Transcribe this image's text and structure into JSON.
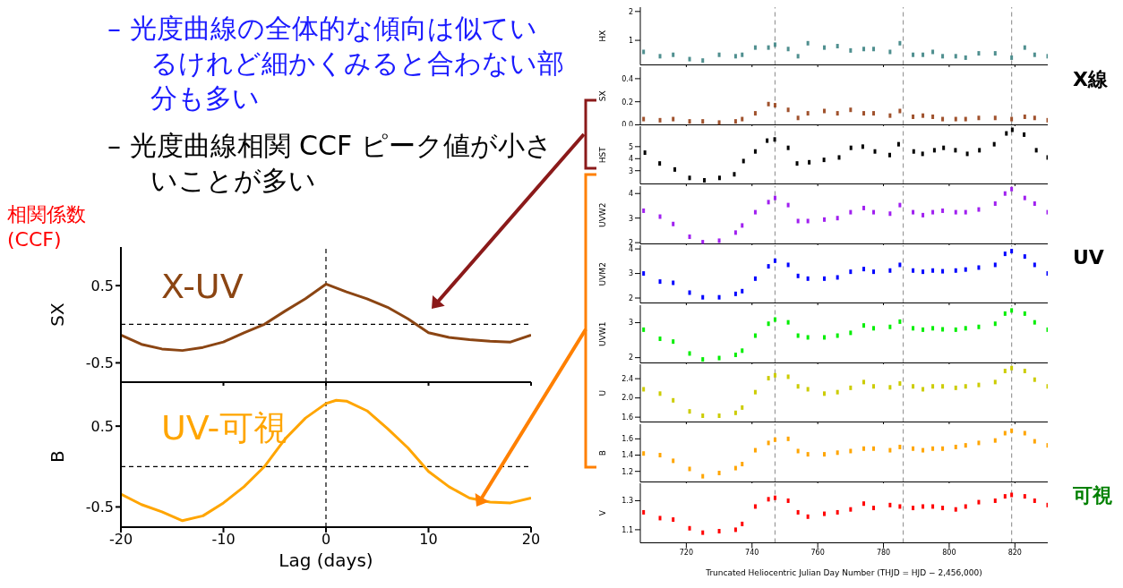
{
  "chart_data": [
    {
      "type": "other",
      "annotations": [
        "– 光度曲線の全体的な傾向は似ているけれど細かくみると合わない部分も多い",
        "– 光度曲線相関 CCF ピーク値が小さいことが多い"
      ]
    },
    {
      "type": "line",
      "ylabel": "SX",
      "annotations": [
        "相関係数 (CCF)"
      ],
      "xlim": [
        -20,
        20
      ],
      "xticks": [
        -20,
        -10,
        0,
        10,
        20
      ],
      "ylim": [
        -0.75,
        1.0
      ],
      "yticks": [
        -0.5,
        0.5
      ],
      "tick_labels": "y",
      "ref_lines": [
        {
          "axis": "x",
          "value": 0,
          "color": "#000000",
          "line_style": "dashed"
        },
        {
          "axis": "y",
          "value": 0,
          "color": "#000000",
          "line_style": "dashed"
        }
      ],
      "series": [
        {
          "name": "X-UV",
          "color": "#8b4513",
          "x": [
            -20,
            -18,
            -16,
            -14,
            -12,
            -10,
            -8,
            -6,
            -4,
            -2,
            0,
            2,
            4,
            6,
            8,
            10,
            12,
            14,
            16,
            18,
            20
          ],
          "values": [
            -0.14,
            -0.26,
            -0.32,
            -0.34,
            -0.3,
            -0.23,
            -0.11,
            0,
            0.17,
            0.33,
            0.52,
            0.42,
            0.33,
            0.22,
            0.07,
            -0.11,
            -0.17,
            -0.2,
            -0.22,
            -0.23,
            -0.14
          ]
        }
      ]
    },
    {
      "type": "line",
      "ylabel": "B",
      "xlabel": "Lag (days)",
      "xlim": [
        -20,
        20
      ],
      "xticks": [
        -20,
        -10,
        0,
        10,
        20
      ],
      "ylim": [
        -0.75,
        1.0
      ],
      "yticks": [
        -0.5,
        0.5
      ],
      "ref_lines": [
        {
          "axis": "x",
          "value": 0,
          "color": "#000000",
          "line_style": "dashed"
        },
        {
          "axis": "y",
          "value": 0,
          "color": "#000000",
          "line_style": "dashed"
        }
      ],
      "series": [
        {
          "name": "UV-可視",
          "color": "#ffa500",
          "x": [
            -20,
            -18,
            -16,
            -14,
            -12,
            -10,
            -8,
            -6,
            -4,
            -2,
            0,
            1,
            2,
            4,
            6,
            8,
            10,
            12,
            14,
            16,
            18,
            20
          ],
          "values": [
            -0.34,
            -0.47,
            -0.56,
            -0.67,
            -0.61,
            -0.45,
            -0.25,
            0,
            0.34,
            0.6,
            0.78,
            0.82,
            0.81,
            0.69,
            0.47,
            0.23,
            -0.06,
            -0.25,
            -0.39,
            -0.44,
            -0.45,
            -0.39
          ]
        }
      ]
    },
    {
      "type": "scatter",
      "ylabel": "HX",
      "marker": "square",
      "tick_labels": "y",
      "xlim": [
        706,
        830
      ],
      "xticks": [
        720,
        740,
        760,
        780,
        800,
        820
      ],
      "ylim": [
        0.15,
        2.15
      ],
      "yticks": [
        1,
        2
      ],
      "ref_lines": [
        {
          "axis": "x",
          "value": 747,
          "color": "#999999",
          "line_style": "dashed"
        },
        {
          "axis": "x",
          "value": 786,
          "color": "#999999",
          "line_style": "dashed"
        },
        {
          "axis": "x",
          "value": 819,
          "color": "#999999",
          "line_style": "dashed"
        }
      ],
      "x": [
        707,
        712,
        716,
        721,
        725,
        730,
        735,
        737,
        741,
        745,
        747,
        751,
        754,
        757,
        762,
        766,
        770,
        774,
        777,
        782,
        785,
        789,
        792,
        795,
        798,
        802,
        805,
        809,
        814,
        817,
        819,
        823,
        826,
        830
      ],
      "series": [
        {
          "color": "#4f8f8f",
          "values": [
            0.6,
            0.45,
            0.5,
            0.35,
            0.3,
            0.5,
            0.45,
            0.5,
            0.75,
            0.75,
            0.85,
            0.7,
            0.45,
            0.9,
            0.75,
            0.8,
            0.65,
            0.7,
            0.7,
            0.6,
            0.9,
            0.5,
            0.5,
            0.6,
            0.45,
            0.45,
            0.4,
            0.55,
            0.55,
            null,
            0.4,
            0.75,
            0.5,
            0.45
          ]
        }
      ]
    },
    {
      "type": "scatter",
      "ylabel": "SX",
      "marker": "square",
      "tick_labels": "y",
      "annotations": [
        "X線"
      ],
      "xlim": [
        706,
        830
      ],
      "xticks": [
        720,
        740,
        760,
        780,
        800,
        820
      ],
      "ylim": [
        0,
        0.5
      ],
      "yticks": [
        {
          "value": 0,
          "label": "0.0"
        },
        0.2,
        0.4
      ],
      "ref_lines": [
        {
          "axis": "x",
          "value": 747,
          "color": "#999999",
          "line_style": "dashed"
        },
        {
          "axis": "x",
          "value": 786,
          "color": "#999999",
          "line_style": "dashed"
        },
        {
          "axis": "x",
          "value": 819,
          "color": "#999999",
          "line_style": "dashed"
        }
      ],
      "x": [
        707,
        712,
        716,
        721,
        725,
        730,
        735,
        737,
        741,
        745,
        747,
        751,
        754,
        757,
        762,
        766,
        770,
        774,
        777,
        782,
        785,
        789,
        792,
        795,
        798,
        802,
        805,
        809,
        814,
        817,
        819,
        823,
        826,
        830
      ],
      "series": [
        {
          "color": "#a0522d",
          "values": [
            0.05,
            0.04,
            0.05,
            0.03,
            0.03,
            0.02,
            0.03,
            0.05,
            0.1,
            0.18,
            0.17,
            0.13,
            0.06,
            0.1,
            0.12,
            0.1,
            0.13,
            0.1,
            0.1,
            0.08,
            0.12,
            0.07,
            0.08,
            0.07,
            0.05,
            0.05,
            0.05,
            0.06,
            0.06,
            null,
            0.05,
            0.07,
            0.06,
            0.04
          ]
        }
      ]
    },
    {
      "type": "scatter",
      "ylabel": "HST",
      "marker": "square",
      "tick_labels": "y",
      "xlim": [
        706,
        830
      ],
      "xticks": [
        720,
        740,
        760,
        780,
        800,
        820
      ],
      "ylim": [
        1.9,
        6.7
      ],
      "yticks": [
        3,
        4,
        5
      ],
      "ref_lines": [
        {
          "axis": "x",
          "value": 747,
          "color": "#999999",
          "line_style": "dashed"
        },
        {
          "axis": "x",
          "value": 786,
          "color": "#999999",
          "line_style": "dashed"
        },
        {
          "axis": "x",
          "value": 819,
          "color": "#999999",
          "line_style": "dashed"
        }
      ],
      "x": [
        707.4,
        711.9,
        716.5,
        721,
        725.5,
        730.1,
        734.6,
        737.4,
        741,
        744.6,
        746.9,
        751,
        753.7,
        757.4,
        761.9,
        766.5,
        770.1,
        773.7,
        777.4,
        781.9,
        784.6,
        789.2,
        791.9,
        795.5,
        798.3,
        801.9,
        805.5,
        809.2,
        813.7,
        817.4,
        819.2,
        822.8,
        826.5,
        830
      ],
      "series": [
        {
          "color": "#000000",
          "values": [
            4.5,
            3.6,
            3.1,
            2.4,
            2.2,
            2.4,
            2.7,
            3.8,
            4.6,
            5.5,
            5.6,
            4.9,
            3.6,
            3.7,
            3.9,
            4.1,
            4.9,
            5.0,
            4.6,
            4.3,
            5.2,
            4.6,
            4.4,
            4.7,
            4.9,
            4.7,
            4.4,
            4.7,
            5.2,
            6.1,
            6.4,
            6.0,
            4.7,
            4.1
          ]
        }
      ]
    },
    {
      "type": "scatter",
      "ylabel": "UVW2",
      "marker": "square",
      "tick_labels": "y",
      "xlim": [
        706,
        830
      ],
      "xticks": [
        720,
        740,
        760,
        780,
        800,
        820
      ],
      "ylim": [
        1.95,
        4.3
      ],
      "yticks": [
        2,
        3,
        4
      ],
      "ref_lines": [
        {
          "axis": "x",
          "value": 747,
          "color": "#999999",
          "line_style": "dashed"
        },
        {
          "axis": "x",
          "value": 786,
          "color": "#999999",
          "line_style": "dashed"
        },
        {
          "axis": "x",
          "value": 819,
          "color": "#999999",
          "line_style": "dashed"
        }
      ],
      "x": [
        707,
        712,
        716,
        721,
        725,
        730,
        735,
        737,
        741,
        745,
        747,
        751,
        754,
        757,
        762,
        766,
        770,
        774,
        777,
        782,
        785,
        789,
        792,
        795,
        798,
        802,
        805,
        809,
        814,
        817,
        819,
        823,
        826,
        830
      ],
      "series": [
        {
          "color": "#a020f0",
          "values": [
            3.3,
            3.06,
            2.76,
            2.24,
            2.02,
            2.08,
            2.41,
            2.7,
            3.24,
            3.65,
            3.82,
            3.53,
            2.88,
            2.88,
            2.94,
            3.0,
            3.24,
            3.41,
            3.24,
            3.18,
            3.53,
            3.24,
            3.12,
            3.24,
            3.3,
            3.24,
            3.24,
            3.35,
            3.59,
            4.0,
            4.18,
            3.82,
            3.59,
            3.24
          ]
        }
      ]
    },
    {
      "type": "scatter",
      "ylabel": "UVM2",
      "marker": "square",
      "tick_labels": "y",
      "annotations": [
        "UV"
      ],
      "xlim": [
        706,
        830
      ],
      "xticks": [
        720,
        740,
        760,
        780,
        800,
        820
      ],
      "ylim": [
        1.8,
        4.15
      ],
      "yticks": [
        2,
        3,
        4
      ],
      "ref_lines": [
        {
          "axis": "x",
          "value": 747,
          "color": "#999999",
          "line_style": "dashed"
        },
        {
          "axis": "x",
          "value": 786,
          "color": "#999999",
          "line_style": "dashed"
        },
        {
          "axis": "x",
          "value": 819,
          "color": "#999999",
          "line_style": "dashed"
        }
      ],
      "x": [
        707,
        712,
        716,
        721,
        725,
        730,
        735,
        737,
        741,
        745,
        747,
        751,
        754,
        757,
        762,
        766,
        770,
        774,
        777,
        782,
        785,
        789,
        792,
        795,
        798,
        802,
        805,
        809,
        814,
        817,
        819,
        823,
        826,
        830
      ],
      "series": [
        {
          "color": "#0000ff",
          "values": [
            3.0,
            2.67,
            2.62,
            2.22,
            2.03,
            2.03,
            2.17,
            2.28,
            2.79,
            3.29,
            3.52,
            3.35,
            2.9,
            2.79,
            2.79,
            2.84,
            3.07,
            3.18,
            3.07,
            3.12,
            3.35,
            3.12,
            3.07,
            3.12,
            3.09,
            3.12,
            3.16,
            3.24,
            3.35,
            3.8,
            3.91,
            3.69,
            3.35,
            3.0
          ]
        }
      ]
    },
    {
      "type": "scatter",
      "ylabel": "UVW1",
      "marker": "square",
      "tick_labels": "y",
      "xlim": [
        706,
        830
      ],
      "xticks": [
        720,
        740,
        760,
        780,
        800,
        820
      ],
      "ylim": [
        1.85,
        3.5
      ],
      "yticks": [
        2,
        3
      ],
      "ref_lines": [
        {
          "axis": "x",
          "value": 747,
          "color": "#999999",
          "line_style": "dashed"
        },
        {
          "axis": "x",
          "value": 786,
          "color": "#999999",
          "line_style": "dashed"
        },
        {
          "axis": "x",
          "value": 819,
          "color": "#999999",
          "line_style": "dashed"
        }
      ],
      "x": [
        707,
        712,
        716,
        721,
        725,
        730,
        735,
        737,
        741,
        745,
        747,
        751,
        754,
        757,
        762,
        766,
        770,
        774,
        777,
        782,
        785,
        789,
        792,
        795,
        798,
        802,
        805,
        809,
        814,
        817,
        819,
        823,
        826,
        830
      ],
      "series": [
        {
          "color": "#00ee00",
          "values": [
            2.8,
            2.54,
            2.46,
            2.12,
            1.95,
            1.99,
            2.08,
            2.2,
            2.63,
            2.97,
            3.09,
            3.01,
            2.63,
            2.58,
            2.58,
            2.63,
            2.71,
            2.92,
            2.84,
            2.88,
            3.03,
            2.84,
            2.8,
            2.84,
            2.81,
            2.8,
            2.84,
            2.88,
            2.97,
            3.26,
            3.35,
            3.26,
            3.01,
            2.8
          ]
        }
      ]
    },
    {
      "type": "scatter",
      "ylabel": "U",
      "marker": "square",
      "tick_labels": "y",
      "xlim": [
        706,
        830
      ],
      "xticks": [
        720,
        740,
        760,
        780,
        800,
        820
      ],
      "ylim": [
        1.5,
        2.7
      ],
      "yticks": [
        1.6,
        {
          "value": 2,
          "label": "2.0"
        },
        2.4
      ],
      "ref_lines": [
        {
          "axis": "x",
          "value": 747,
          "color": "#999999",
          "line_style": "dashed"
        },
        {
          "axis": "x",
          "value": 786,
          "color": "#999999",
          "line_style": "dashed"
        },
        {
          "axis": "x",
          "value": 819,
          "color": "#999999",
          "line_style": "dashed"
        }
      ],
      "x": [
        707,
        712,
        716,
        721,
        725,
        730,
        735,
        737,
        741,
        745,
        747,
        751,
        754,
        757,
        762,
        766,
        770,
        774,
        777,
        782,
        785,
        789,
        792,
        795,
        798,
        802,
        805,
        809,
        814,
        817,
        819,
        823,
        826,
        830
      ],
      "series": [
        {
          "color": "#cccc00",
          "values": [
            2.18,
            2.09,
            1.95,
            1.72,
            1.63,
            1.63,
            1.69,
            1.8,
            2.12,
            2.41,
            2.47,
            2.44,
            2.24,
            2.18,
            2.09,
            2.12,
            2.21,
            2.33,
            2.24,
            2.22,
            2.3,
            2.24,
            2.18,
            2.24,
            2.24,
            2.21,
            2.24,
            2.27,
            2.33,
            2.56,
            2.62,
            2.56,
            2.38,
            2.24
          ]
        }
      ]
    },
    {
      "type": "scatter",
      "ylabel": "B",
      "marker": "square",
      "tick_labels": "y",
      "xlim": [
        706,
        830
      ],
      "xticks": [
        720,
        740,
        760,
        780,
        800,
        820
      ],
      "ylim": [
        1.07,
        1.78
      ],
      "yticks": [
        1.2,
        1.4,
        1.6
      ],
      "ref_lines": [
        {
          "axis": "x",
          "value": 747,
          "color": "#999999",
          "line_style": "dashed"
        },
        {
          "axis": "x",
          "value": 786,
          "color": "#999999",
          "line_style": "dashed"
        },
        {
          "axis": "x",
          "value": 819,
          "color": "#999999",
          "line_style": "dashed"
        }
      ],
      "x": [
        707,
        712,
        716,
        721,
        725,
        730,
        735,
        737,
        741,
        745,
        747,
        751,
        754,
        757,
        762,
        766,
        770,
        774,
        777,
        782,
        785,
        789,
        792,
        795,
        798,
        802,
        805,
        809,
        814,
        817,
        819,
        823,
        826,
        830
      ],
      "series": [
        {
          "color": "#ffa500",
          "values": [
            1.42,
            1.4,
            1.33,
            1.23,
            1.14,
            1.18,
            1.24,
            1.29,
            1.46,
            1.55,
            1.59,
            1.6,
            1.45,
            1.41,
            1.41,
            1.43,
            1.45,
            1.48,
            1.48,
            1.46,
            1.5,
            1.48,
            1.46,
            1.48,
            1.48,
            1.5,
            1.52,
            1.55,
            1.58,
            1.67,
            1.7,
            1.67,
            1.57,
            1.52
          ]
        }
      ]
    },
    {
      "type": "scatter",
      "ylabel": "V",
      "xlabel": "Truncated Heliocentric Julian Day Number (THJD = HJD − 2,456,000)",
      "marker": "square",
      "annotations": [
        "可視"
      ],
      "xlim": [
        706,
        830
      ],
      "xticks": [
        720,
        740,
        760,
        780,
        800,
        820
      ],
      "ylim": [
        1.01,
        1.42
      ],
      "yticks": [
        1.1,
        1.3
      ],
      "ref_lines": [
        {
          "axis": "x",
          "value": 747,
          "color": "#999999",
          "line_style": "dashed"
        },
        {
          "axis": "x",
          "value": 786,
          "color": "#999999",
          "line_style": "dashed"
        },
        {
          "axis": "x",
          "value": 819,
          "color": "#999999",
          "line_style": "dashed"
        }
      ],
      "x": [
        707,
        712,
        716,
        721,
        725,
        730,
        735,
        737,
        741,
        745,
        747,
        751,
        754,
        757,
        762,
        766,
        770,
        774,
        777,
        782,
        785,
        789,
        792,
        795,
        798,
        802,
        805,
        809,
        814,
        817,
        819,
        823,
        826,
        830
      ],
      "series": [
        {
          "color": "#ff0000",
          "values": [
            1.22,
            1.18,
            1.17,
            1.11,
            1.08,
            1.09,
            1.1,
            1.14,
            1.26,
            1.31,
            1.32,
            1.3,
            1.22,
            1.19,
            1.21,
            1.22,
            1.24,
            1.28,
            1.25,
            1.27,
            1.26,
            1.25,
            1.26,
            1.26,
            1.25,
            1.24,
            1.26,
            1.29,
            1.3,
            1.33,
            1.34,
            1.33,
            1.3,
            1.27
          ]
        }
      ]
    }
  ]
}
